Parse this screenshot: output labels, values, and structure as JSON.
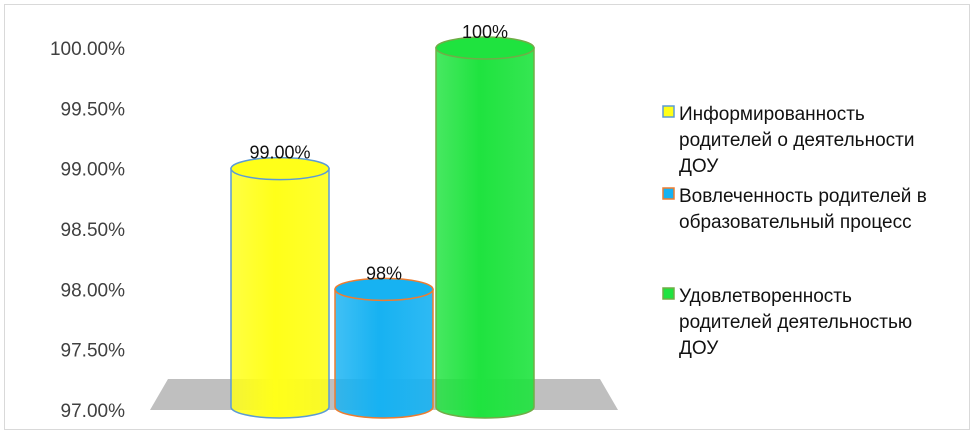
{
  "chart_data": {
    "type": "bar",
    "title": "",
    "xlabel": "",
    "ylabel": "",
    "ylim": [
      0.97,
      1.0
    ],
    "ytick_values": [
      0.97,
      0.975,
      0.98,
      0.985,
      0.99,
      0.995,
      1.0
    ],
    "ytick_labels": [
      "97.00%",
      "97.50%",
      "98.00%",
      "98.50%",
      "99.00%",
      "99.50%",
      "100.00%"
    ],
    "grid": false,
    "legend_position": "right",
    "series": [
      {
        "name": "Информированность родителей о деятельности ДОУ",
        "values": [
          0.99
        ],
        "data_label": "99.00%",
        "color": "#FFFF19",
        "edge_color": "#5B9BD5"
      },
      {
        "name": "Вовлеченность родителей в образовательный процесс",
        "values": [
          0.98
        ],
        "data_label": "98%",
        "color": "#17B2F2",
        "edge_color": "#ED7D31"
      },
      {
        "name": "Удовлетворенность родителей деятельностью ДОУ",
        "values": [
          1.0
        ],
        "data_label": "100%",
        "color": "#1FE33F",
        "edge_color": "#70AD47"
      }
    ]
  },
  "legend": {
    "items": [
      {
        "lines": [
          "Информированность",
          "родителей о деятельности",
          "ДОУ"
        ]
      },
      {
        "lines": [
          "Вовлеченность родителей в",
          "образовательный процесс"
        ]
      },
      {
        "lines": [
          "Удовлетворенность",
          "родителей деятельностью",
          "ДОУ"
        ]
      }
    ]
  }
}
